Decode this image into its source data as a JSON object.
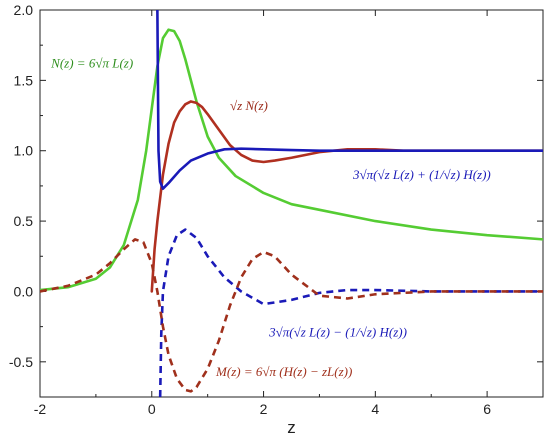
{
  "chart_data": {
    "type": "line",
    "xlabel": "z",
    "ylabel": "",
    "xlim": [
      -2,
      7
    ],
    "ylim": [
      -0.75,
      2.0
    ],
    "x_ticks": [
      -2,
      0,
      2,
      4,
      6
    ],
    "x_tick_labels": [
      "-2",
      "0",
      "2",
      "4",
      "6"
    ],
    "y_ticks": [
      -0.5,
      0.0,
      0.5,
      1.0,
      1.5,
      2.0
    ],
    "y_tick_labels": [
      "-0.5",
      "0.0",
      "0.5",
      "1.0",
      "1.5",
      "2.0"
    ],
    "grid": false,
    "series": [
      {
        "label": "N(z) = 6√π L(z)",
        "color": "#55cc33",
        "dash": "solid",
        "x": [
          -2.0,
          -1.5,
          -1.0,
          -0.75,
          -0.5,
          -0.25,
          -0.1,
          0.0,
          0.1,
          0.2,
          0.3,
          0.4,
          0.5,
          0.6,
          0.7,
          0.8,
          1.0,
          1.2,
          1.5,
          2.0,
          2.5,
          3.0,
          4.0,
          5.0,
          6.0,
          7.0
        ],
        "y": [
          0.01,
          0.03,
          0.09,
          0.17,
          0.33,
          0.65,
          1.0,
          1.3,
          1.6,
          1.8,
          1.86,
          1.85,
          1.78,
          1.65,
          1.5,
          1.35,
          1.1,
          0.95,
          0.82,
          0.7,
          0.62,
          0.58,
          0.5,
          0.44,
          0.4,
          0.37
        ]
      },
      {
        "label": "√z N(z)",
        "color": "#b03020",
        "dash": "solid",
        "x": [
          0.0,
          0.05,
          0.1,
          0.2,
          0.3,
          0.4,
          0.5,
          0.6,
          0.7,
          0.8,
          0.9,
          1.0,
          1.2,
          1.4,
          1.6,
          1.8,
          2.0,
          2.2,
          2.5,
          3.0,
          3.5,
          4.0,
          4.5,
          5.0,
          6.0,
          7.0
        ],
        "y": [
          0.0,
          0.3,
          0.5,
          0.83,
          1.05,
          1.2,
          1.28,
          1.33,
          1.35,
          1.34,
          1.31,
          1.26,
          1.15,
          1.04,
          0.97,
          0.93,
          0.92,
          0.93,
          0.95,
          0.99,
          1.01,
          1.01,
          1.0,
          1.0,
          1.0,
          1.0
        ]
      },
      {
        "label": "3√π(√z L(z) + (1/√z) H(z))",
        "color": "#1a1ab8",
        "dash": "solid",
        "x": [
          0.1,
          0.12,
          0.15,
          0.2,
          0.3,
          0.5,
          0.7,
          1.0,
          1.3,
          1.6,
          2.0,
          2.5,
          3.0,
          4.0,
          5.0,
          6.0,
          7.0
        ],
        "y": [
          2.0,
          1.0,
          0.78,
          0.73,
          0.77,
          0.86,
          0.93,
          0.98,
          1.01,
          1.015,
          1.01,
          1.005,
          1.0,
          1.0,
          1.0,
          1.0,
          1.0
        ]
      },
      {
        "label": "3√π(√z L(z) − (1/√z) H(z))",
        "color": "#1a1ab8",
        "dash": "dashed",
        "x": [
          0.15,
          0.17,
          0.2,
          0.3,
          0.45,
          0.6,
          0.8,
          1.0,
          1.3,
          1.6,
          2.0,
          2.5,
          3.0,
          3.5,
          4.0,
          5.0,
          6.0,
          7.0
        ],
        "y": [
          -0.75,
          -0.3,
          0.0,
          0.25,
          0.4,
          0.44,
          0.38,
          0.25,
          0.1,
          0.0,
          -0.09,
          -0.06,
          -0.01,
          0.01,
          0.01,
          0.0,
          0.0,
          0.0
        ]
      },
      {
        "label": "M(z) = 6√π (H(z) − zL(z))",
        "color": "#a0301c",
        "dash": "dashed",
        "x": [
          -2.0,
          -1.5,
          -1.0,
          -0.75,
          -0.5,
          -0.3,
          -0.15,
          0.0,
          0.1,
          0.2,
          0.3,
          0.45,
          0.6,
          0.7,
          0.8,
          1.0,
          1.2,
          1.4,
          1.6,
          1.8,
          2.0,
          2.2,
          2.5,
          3.0,
          3.5,
          4.0,
          5.0,
          6.0,
          7.0
        ],
        "y": [
          0.0,
          0.04,
          0.12,
          0.2,
          0.3,
          0.37,
          0.35,
          0.2,
          0.0,
          -0.25,
          -0.45,
          -0.62,
          -0.7,
          -0.71,
          -0.68,
          -0.55,
          -0.35,
          -0.1,
          0.1,
          0.23,
          0.28,
          0.25,
          0.12,
          -0.03,
          -0.05,
          -0.02,
          0.0,
          0.0,
          0.0
        ]
      }
    ],
    "annotations": [
      {
        "series_index": 0,
        "text": "N(z) = 6√π L(z)",
        "color": "#2f8f1e",
        "at": [
          -1.8,
          1.59
        ]
      },
      {
        "series_index": 1,
        "text": "√z N(z)",
        "color": "#9a2a1a",
        "at": [
          1.4,
          1.29
        ]
      },
      {
        "series_index": 2,
        "text": "3√π(√z L(z) + (1/√z) H(z))",
        "color": "#1a1ab8",
        "at": [
          3.6,
          0.8
        ]
      },
      {
        "series_index": 3,
        "text": "3√π(√z L(z) − (1/√z) H(z))",
        "color": "#1a1ab8",
        "at": [
          2.1,
          -0.32
        ]
      },
      {
        "series_index": 4,
        "text": "M(z) = 6√π (H(z) − zL(z))",
        "color": "#a0301c",
        "at": [
          1.15,
          -0.6
        ]
      }
    ]
  }
}
